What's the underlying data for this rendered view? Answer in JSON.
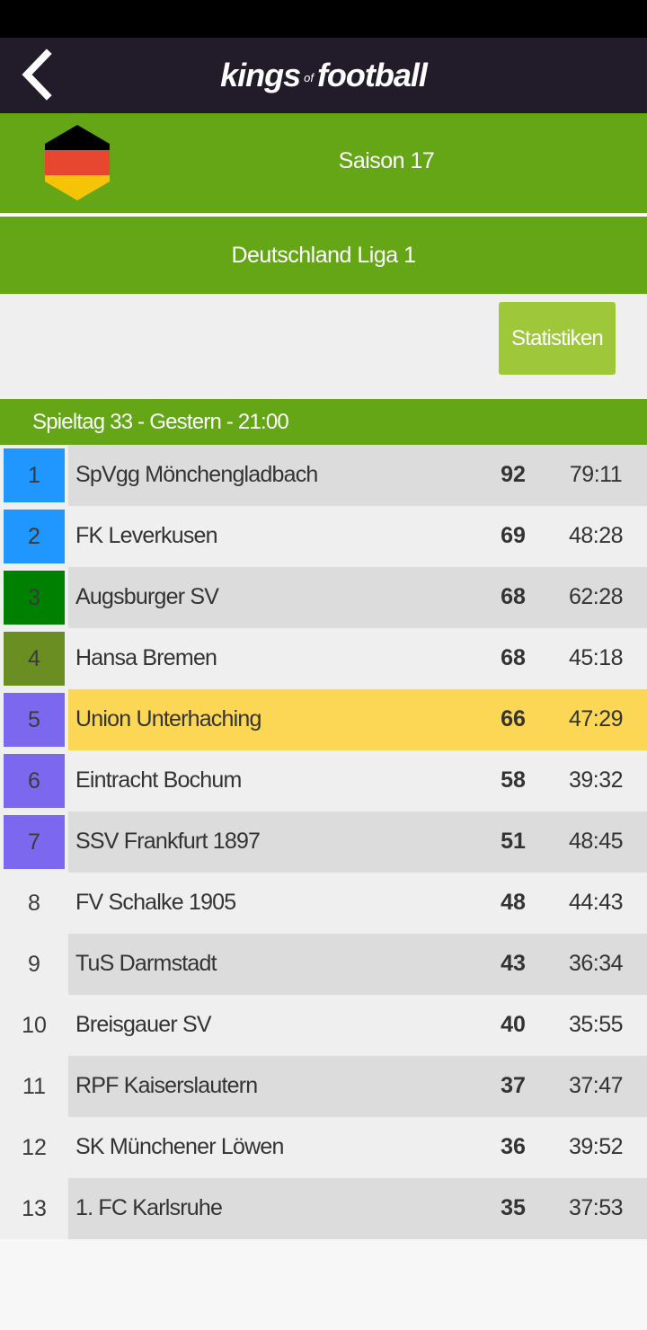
{
  "header": {
    "logo_part1": "kings",
    "logo_of": "of",
    "logo_part2": "football"
  },
  "season": {
    "label": "Saison 17"
  },
  "league": {
    "name": "Deutschland Liga 1"
  },
  "stats_button": {
    "label": "Statistiken"
  },
  "matchday": {
    "label": "Spieltag 33 - Gestern - 21:00"
  },
  "colors": {
    "green": "#65a617",
    "rank_blue": "#1f97ff",
    "rank_dark_green": "#008000",
    "rank_olive": "#6b8e23",
    "rank_purple": "#7b68ee",
    "highlight": "#fcd655",
    "row_even": "#dcdcdc",
    "row_odd": "#efefef"
  },
  "table": {
    "rows": [
      {
        "rank": "1",
        "team": "SpVgg Mönchengladbach",
        "points": "92",
        "goals": "79:11",
        "rank_color": "#1f97ff"
      },
      {
        "rank": "2",
        "team": "FK Leverkusen",
        "points": "69",
        "goals": "48:28",
        "rank_color": "#1f97ff"
      },
      {
        "rank": "3",
        "team": "Augsburger SV",
        "points": "68",
        "goals": "62:28",
        "rank_color": "#008000"
      },
      {
        "rank": "4",
        "team": "Hansa Bremen",
        "points": "68",
        "goals": "45:18",
        "rank_color": "#6b8e23"
      },
      {
        "rank": "5",
        "team": "Union Unterhaching",
        "points": "66",
        "goals": "47:29",
        "rank_color": "#7b68ee",
        "highlight": true
      },
      {
        "rank": "6",
        "team": "Eintracht Bochum",
        "points": "58",
        "goals": "39:32",
        "rank_color": "#7b68ee"
      },
      {
        "rank": "7",
        "team": "SSV Frankfurt 1897",
        "points": "51",
        "goals": "48:45",
        "rank_color": "#7b68ee"
      },
      {
        "rank": "8",
        "team": "FV Schalke 1905",
        "points": "48",
        "goals": "44:43",
        "rank_color": ""
      },
      {
        "rank": "9",
        "team": "TuS Darmstadt",
        "points": "43",
        "goals": "36:34",
        "rank_color": ""
      },
      {
        "rank": "10",
        "team": "Breisgauer SV",
        "points": "40",
        "goals": "35:55",
        "rank_color": ""
      },
      {
        "rank": "11",
        "team": "RPF Kaiserslautern",
        "points": "37",
        "goals": "37:47",
        "rank_color": ""
      },
      {
        "rank": "12",
        "team": "SK Münchener Löwen",
        "points": "36",
        "goals": "39:52",
        "rank_color": ""
      },
      {
        "rank": "13",
        "team": "1. FC Karlsruhe",
        "points": "35",
        "goals": "37:53",
        "rank_color": ""
      }
    ]
  }
}
